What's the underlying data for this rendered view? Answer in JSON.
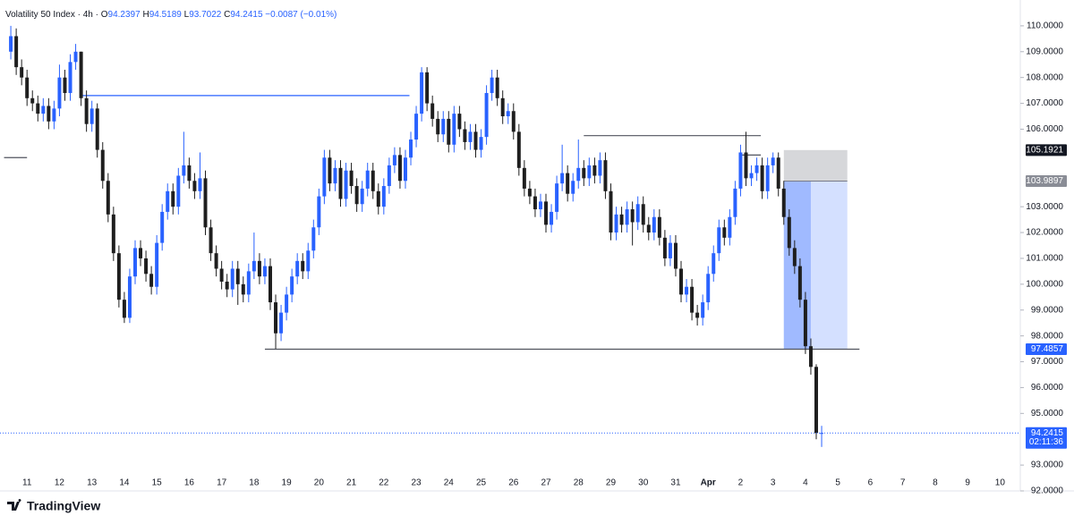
{
  "chart_data": {
    "type": "candlestick",
    "title": "Volatility 50 Index · 4h ·",
    "change": "−0.0087 (−0.01%)",
    "ohlc_letters": [
      "O",
      "H",
      "L",
      "C"
    ],
    "brand": "TradingView",
    "countdown": "02:11:36",
    "up_color": "#2962ff",
    "down_color": "#1e1e1e",
    "xlim": [
      -20,
      735
    ],
    "ylim": [
      92,
      111
    ],
    "xticks": [
      {
        "value": 0,
        "label": "11"
      },
      {
        "value": 24,
        "label": "12"
      },
      {
        "value": 48,
        "label": "13"
      },
      {
        "value": 72,
        "label": "14"
      },
      {
        "value": 96,
        "label": "15"
      },
      {
        "value": 120,
        "label": "16"
      },
      {
        "value": 144,
        "label": "17"
      },
      {
        "value": 168,
        "label": "18"
      },
      {
        "value": 192,
        "label": "19"
      },
      {
        "value": 216,
        "label": "20"
      },
      {
        "value": 240,
        "label": "21"
      },
      {
        "value": 264,
        "label": "22"
      },
      {
        "value": 288,
        "label": "23"
      },
      {
        "value": 312,
        "label": "24"
      },
      {
        "value": 336,
        "label": "25"
      },
      {
        "value": 360,
        "label": "26"
      },
      {
        "value": 384,
        "label": "27"
      },
      {
        "value": 408,
        "label": "28"
      },
      {
        "value": 432,
        "label": "29"
      },
      {
        "value": 456,
        "label": "30"
      },
      {
        "value": 480,
        "label": "31"
      },
      {
        "value": 504,
        "label": "Apr"
      },
      {
        "value": 528,
        "label": "2"
      },
      {
        "value": 552,
        "label": "3"
      },
      {
        "value": 576,
        "label": "4"
      },
      {
        "value": 600,
        "label": "5"
      },
      {
        "value": 624,
        "label": "6"
      },
      {
        "value": 648,
        "label": "7"
      },
      {
        "value": 672,
        "label": "8"
      },
      {
        "value": 696,
        "label": "9"
      },
      {
        "value": 720,
        "label": "10"
      }
    ],
    "yticks": [
      {
        "value": 110,
        "label": "110.0000"
      },
      {
        "value": 109,
        "label": "109.0000"
      },
      {
        "value": 108,
        "label": "108.0000"
      },
      {
        "value": 107,
        "label": "107.0000"
      },
      {
        "value": 106,
        "label": "106.0000"
      },
      {
        "value": 103,
        "label": "103.0000"
      },
      {
        "value": 102,
        "label": "102.0000"
      },
      {
        "value": 101,
        "label": "101.0000"
      },
      {
        "value": 100,
        "label": "100.0000"
      },
      {
        "value": 99,
        "label": "99.0000"
      },
      {
        "value": 98,
        "label": "98.0000"
      },
      {
        "value": 97,
        "label": "97.0000"
      },
      {
        "value": 96,
        "label": "96.0000"
      },
      {
        "value": 95,
        "label": "95.0000"
      },
      {
        "value": 93,
        "label": "93.0000"
      },
      {
        "value": 92,
        "label": "92.0000"
      }
    ],
    "x": [
      -12,
      -8,
      -4,
      0,
      4,
      8,
      12,
      16,
      20,
      24,
      28,
      32,
      36,
      40,
      44,
      48,
      52,
      56,
      60,
      64,
      68,
      72,
      76,
      80,
      84,
      88,
      92,
      96,
      100,
      104,
      108,
      112,
      116,
      120,
      124,
      128,
      132,
      136,
      140,
      144,
      148,
      152,
      156,
      160,
      164,
      168,
      172,
      176,
      180,
      184,
      188,
      192,
      196,
      200,
      204,
      208,
      212,
      216,
      220,
      224,
      228,
      232,
      236,
      240,
      244,
      248,
      252,
      256,
      260,
      264,
      268,
      272,
      276,
      280,
      284,
      288,
      292,
      296,
      300,
      304,
      308,
      312,
      316,
      320,
      324,
      328,
      332,
      336,
      340,
      344,
      348,
      352,
      356,
      360,
      364,
      368,
      372,
      376,
      380,
      384,
      388,
      392,
      396,
      400,
      404,
      408,
      412,
      416,
      420,
      424,
      428,
      432,
      436,
      440,
      444,
      448,
      452,
      456,
      460,
      464,
      468,
      472,
      476,
      480,
      484,
      488,
      492,
      496,
      500,
      504,
      508,
      512,
      516,
      520,
      524,
      528,
      532,
      536,
      540,
      544,
      548,
      552,
      556,
      560,
      564,
      568,
      572,
      576,
      580,
      584,
      588
    ],
    "open": [
      109.0,
      109.6,
      108.4,
      108.0,
      107.2,
      107.0,
      106.6,
      106.9,
      106.3,
      106.8,
      108.0,
      107.4,
      108.6,
      109.0,
      107.2,
      106.2,
      106.8,
      105.2,
      104.0,
      102.7,
      101.2,
      99.4,
      98.7,
      100.3,
      101.4,
      101.0,
      100.4,
      99.9,
      101.6,
      102.8,
      103.6,
      103.0,
      104.2,
      104.6,
      104.0,
      103.6,
      104.1,
      102.2,
      101.2,
      100.6,
      100.1,
      99.8,
      100.6,
      100.0,
      99.6,
      100.5,
      100.9,
      100.3,
      100.7,
      99.3,
      98.1,
      98.9,
      99.6,
      100.3,
      100.9,
      100.5,
      101.3,
      102.2,
      103.4,
      104.9,
      103.9,
      104.5,
      103.3,
      104.4,
      103.8,
      103.1,
      103.7,
      104.4,
      103.6,
      103.0,
      103.8,
      104.6,
      105.0,
      104.0,
      104.9,
      105.6,
      106.6,
      108.2,
      107.0,
      106.4,
      105.8,
      106.4,
      105.4,
      106.6,
      106.0,
      105.5,
      105.9,
      105.2,
      105.7,
      107.4,
      108.0,
      107.2,
      106.5,
      106.7,
      105.9,
      104.5,
      103.7,
      103.4,
      102.9,
      103.2,
      102.3,
      102.8,
      103.9,
      104.3,
      103.5,
      104.0,
      104.5,
      104.1,
      104.6,
      104.2,
      104.8,
      103.6,
      102.0,
      102.7,
      102.3,
      102.9,
      102.4,
      103.1,
      102.3,
      102.0,
      102.6,
      101.8,
      101.0,
      101.6,
      100.6,
      99.6,
      99.9,
      98.9,
      98.7,
      99.3,
      100.4,
      101.2,
      102.2,
      101.8,
      102.6,
      103.7,
      105.1,
      104.1,
      104.3,
      104.6,
      103.6,
      104.6,
      104.9,
      103.7,
      102.6,
      101.4,
      100.7,
      99.4,
      97.6,
      96.8,
      94.2397
    ],
    "high": [
      110.0,
      109.9,
      108.7,
      108.3,
      107.5,
      107.3,
      107.2,
      107.2,
      107.1,
      108.5,
      108.3,
      108.9,
      109.3,
      109.0,
      107.5,
      107.1,
      107.0,
      105.5,
      104.3,
      103.0,
      101.5,
      99.7,
      100.6,
      101.7,
      101.7,
      101.3,
      100.7,
      101.9,
      103.1,
      103.9,
      103.9,
      104.5,
      105.9,
      104.9,
      104.3,
      105.1,
      104.4,
      102.5,
      101.5,
      100.9,
      100.4,
      100.9,
      100.9,
      100.3,
      100.8,
      102.0,
      101.2,
      101.0,
      101.0,
      99.6,
      99.2,
      99.9,
      100.6,
      101.2,
      101.2,
      101.6,
      102.5,
      103.7,
      105.2,
      105.2,
      104.8,
      104.8,
      104.7,
      104.7,
      104.1,
      104.0,
      104.7,
      104.7,
      103.9,
      104.1,
      104.9,
      105.3,
      105.3,
      105.2,
      105.9,
      106.9,
      108.4,
      108.4,
      107.3,
      106.7,
      106.7,
      106.7,
      106.9,
      106.9,
      106.3,
      106.2,
      106.2,
      106.0,
      107.7,
      108.3,
      108.3,
      107.5,
      107.0,
      107.0,
      106.2,
      104.8,
      104.0,
      103.7,
      103.5,
      103.5,
      103.1,
      104.2,
      105.4,
      104.6,
      104.3,
      105.6,
      104.8,
      104.9,
      104.9,
      105.1,
      105.1,
      103.9,
      103.0,
      103.0,
      103.2,
      103.2,
      103.4,
      103.4,
      102.6,
      102.9,
      102.9,
      102.1,
      101.9,
      101.9,
      100.9,
      100.2,
      100.2,
      99.2,
      99.6,
      100.7,
      101.5,
      102.5,
      102.5,
      102.9,
      104.0,
      105.4,
      105.9,
      104.6,
      104.9,
      104.9,
      104.9,
      105.1,
      105.1,
      104.0,
      102.9,
      101.7,
      101.0,
      99.7,
      97.9,
      96.9,
      94.5189
    ],
    "low": [
      108.7,
      108.1,
      107.7,
      106.9,
      106.7,
      106.3,
      106.3,
      106.0,
      106.0,
      106.5,
      107.1,
      107.1,
      108.3,
      106.9,
      105.9,
      105.9,
      104.9,
      103.7,
      102.4,
      100.9,
      99.1,
      98.5,
      98.5,
      100.0,
      100.7,
      100.1,
      99.6,
      99.6,
      101.3,
      102.5,
      102.7,
      102.7,
      103.9,
      103.7,
      103.3,
      103.3,
      101.9,
      100.9,
      100.3,
      99.8,
      99.5,
      99.5,
      99.2,
      99.3,
      99.3,
      100.2,
      100.0,
      100.0,
      99.0,
      97.5,
      97.8,
      98.6,
      99.3,
      100.0,
      100.2,
      100.2,
      101.0,
      101.9,
      103.1,
      103.6,
      103.6,
      103.0,
      103.0,
      103.5,
      102.8,
      102.8,
      103.4,
      103.3,
      102.7,
      102.7,
      103.5,
      104.3,
      103.7,
      103.7,
      104.6,
      105.3,
      106.3,
      106.7,
      106.1,
      105.5,
      105.5,
      105.1,
      105.1,
      105.7,
      105.2,
      105.2,
      104.9,
      104.9,
      105.4,
      107.1,
      106.9,
      106.2,
      106.2,
      105.6,
      104.2,
      103.4,
      103.1,
      102.6,
      102.6,
      102.0,
      102.0,
      102.5,
      103.6,
      103.2,
      103.2,
      103.7,
      103.8,
      103.8,
      103.9,
      103.9,
      103.3,
      101.7,
      101.7,
      102.0,
      102.0,
      101.5,
      102.1,
      102.0,
      101.7,
      101.7,
      101.5,
      100.7,
      100.7,
      100.3,
      99.3,
      99.3,
      98.6,
      98.4,
      98.4,
      99.0,
      100.1,
      100.9,
      101.5,
      101.5,
      102.3,
      103.4,
      103.8,
      103.8,
      104.0,
      103.3,
      103.3,
      104.3,
      103.4,
      102.3,
      101.1,
      100.4,
      99.1,
      97.3,
      96.5,
      94.0,
      93.7022
    ],
    "close": [
      109.6,
      108.4,
      108.0,
      107.2,
      107.0,
      106.6,
      106.9,
      106.3,
      106.8,
      108.0,
      107.4,
      108.6,
      109.0,
      107.2,
      106.2,
      106.8,
      105.2,
      104.0,
      102.7,
      101.2,
      99.4,
      98.7,
      100.3,
      101.4,
      101.0,
      100.4,
      99.9,
      101.6,
      102.8,
      103.6,
      103.0,
      104.2,
      104.6,
      104.0,
      103.6,
      104.1,
      102.2,
      101.2,
      100.6,
      100.1,
      99.8,
      100.6,
      100.0,
      99.6,
      100.5,
      100.9,
      100.3,
      100.7,
      99.3,
      98.1,
      98.9,
      99.6,
      100.3,
      100.9,
      100.5,
      101.3,
      102.2,
      103.4,
      104.9,
      103.9,
      104.5,
      103.3,
      104.4,
      103.8,
      103.1,
      103.7,
      104.4,
      103.6,
      103.0,
      103.8,
      104.6,
      105.0,
      104.0,
      104.9,
      105.6,
      106.6,
      108.2,
      107.0,
      106.4,
      105.8,
      106.4,
      105.4,
      106.6,
      106.0,
      105.5,
      105.9,
      105.2,
      105.7,
      107.4,
      108.0,
      107.2,
      106.5,
      106.7,
      105.9,
      104.5,
      103.7,
      103.4,
      102.9,
      103.2,
      102.3,
      102.8,
      103.9,
      104.3,
      103.5,
      104.0,
      104.5,
      104.1,
      104.6,
      104.2,
      104.8,
      103.6,
      102.0,
      102.7,
      102.3,
      102.9,
      102.4,
      103.1,
      102.3,
      102.0,
      102.6,
      101.8,
      101.0,
      101.6,
      100.6,
      99.6,
      99.9,
      98.9,
      98.7,
      99.3,
      100.4,
      101.2,
      102.2,
      101.8,
      102.6,
      103.7,
      105.1,
      104.1,
      104.3,
      104.6,
      103.6,
      104.6,
      104.9,
      103.7,
      102.6,
      101.4,
      100.7,
      99.4,
      97.6,
      96.8,
      94.2397,
      94.2415
    ],
    "lines": [
      {
        "value": 107.3,
        "start": 39,
        "end": 283,
        "color": "#2962ff"
      },
      {
        "value": 105.75,
        "start": 412,
        "end": 543,
        "color": "#50535e"
      },
      {
        "value": 105.0,
        "start": 527,
        "end": 543,
        "color": "#50535e"
      },
      {
        "value": 97.4857,
        "start": 176,
        "end": 616,
        "color": "#50535e"
      },
      {
        "value": 104.9,
        "start": -17,
        "end": 0,
        "color": "#50535e"
      }
    ],
    "position": {
      "stop": 105.1921,
      "entry": 103.9897,
      "target": 97.4857,
      "start": 560,
      "filled_end": 580,
      "end": 607,
      "stop_label": {
        "value": 105.1921,
        "label": "105.1921"
      },
      "entry_label": {
        "value": 103.9897,
        "label": "103.9897"
      },
      "target_label": {
        "value": 97.4857,
        "label": "97.4857"
      }
    }
  }
}
